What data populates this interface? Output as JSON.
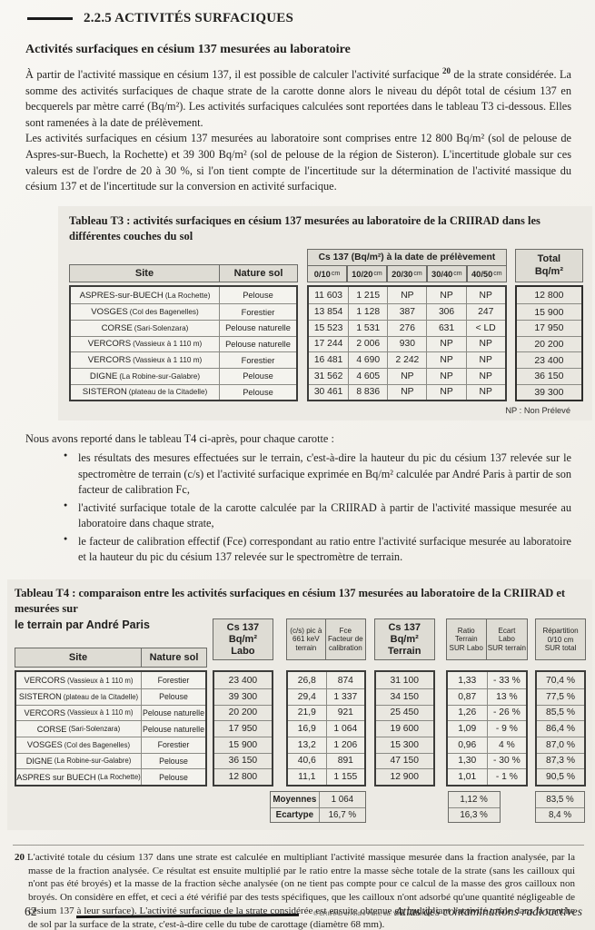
{
  "page": {
    "section_heading": "2.2.5 ACTIVITÉS SURFACIQUES",
    "subtitle": "Activités surfaciques en césium 137 mesurées au laboratoire",
    "para1_before": "À partir de l'activité massique en césium 137, il est possible de calculer l'activité surfacique ",
    "para1_sup": "20",
    "para1_after": " de la strate considérée. La somme des activités surfaciques de chaque strate de la carotte donne alors le niveau du dépôt total de césium 137 en becquerels par mètre carré (Bq/m²). Les activités surfaciques calculées sont reportées dans le tableau T3 ci-dessous. Elles sont ramenées à la date de prélèvement.",
    "para2": "Les activités surfaciques en césium 137 mesurées au laboratoire sont comprises entre 12 800 Bq/m² (sol de pelouse de Aspres-sur-Buech, la Rochette) et 39 300 Bq/m² (sol de pelouse de la région de Sisteron). L'incertitude globale sur ces valeurs est de l'ordre de 20 à 30 %, si l'on tient compte de l'incertitude sur la détermination de l'activité massique du césium 137 et de l'incertitude sur la conversion en activité surfacique.",
    "t4_intro": "Nous avons reporté dans le tableau T4 ci-après, pour chaque carotte :",
    "bullets": [
      "les résultats des mesures effectuées sur le terrain, c'est-à-dire la hauteur du pic du césium 137 relevée sur le spectromètre de terrain (c/s) et l'activité surfacique exprimée en Bq/m² calculée par André Paris à partir de son facteur de calibration Fc,",
      "l'activité surfacique totale de la carotte calculée par la CRIIRAD à partir de l'activité massique mesurée au laboratoire dans chaque strate,",
      "le facteur de calibration effectif (Fce) correspondant au ratio entre l'activité surfacique mesurée au laboratoire et la hauteur du pic du césium 137 relevée sur le spectromètre de terrain."
    ],
    "footnote_marker": "20",
    "footnote_text": "L'activité totale du césium 137 dans une strate est calculée en multipliant l'activité massique mesurée dans la fraction analysée, par la masse de la fraction analysée. Ce résultat est ensuite multiplié par le ratio entre la masse sèche totale de la strate (sans les cailloux qui n'ont pas été broyés) et la masse de la fraction sèche analysée (on ne tient pas compte pour ce calcul de la masse des gros cailloux non broyés. On considère en effet, et ceci a été vérifié par des tests spécifiques, que les cailloux n'ont adsorbé qu'une quantité négligeable de césium 137 à leur surface). L'activité surfacique de la strate considérée est ensuite obtenue en multipliant l'activité totale dans la tranche de sol par la surface de la strate, c'est-à-dire celle du tube de carottage (diamètre 68 mm).",
    "footer": {
      "page_number": "62",
      "credit": "© CRIIRAD et André Paris, éd. Yves Michel",
      "book_title": "Atlas des contaminations radioactives"
    }
  },
  "t3": {
    "title": "Tableau T3 : activités surfaciques en césium 137 mesurées au laboratoire de la CRIIRAD dans les différentes couches du sol",
    "headers": {
      "site": "Site",
      "nature": "Nature sol",
      "group": "Cs 137 (Bq/m²) à la date de prélèvement",
      "depths": [
        {
          "range": "0/10",
          "unit": "cm"
        },
        {
          "range": "10/20",
          "unit": "cm"
        },
        {
          "range": "20/30",
          "unit": "cm"
        },
        {
          "range": "30/40",
          "unit": "cm"
        },
        {
          "range": "40/50",
          "unit": "cm"
        }
      ],
      "total": "Total\nBq/m²"
    },
    "rows": [
      {
        "site": "ASPRES-sur-BUECH",
        "site_detail": "(La Rochette)",
        "nature": "Pelouse",
        "d1": "11 603",
        "d2": "1 215",
        "d3": "NP",
        "d4": "NP",
        "d5": "NP",
        "total": "12 800"
      },
      {
        "site": "VOSGES",
        "site_detail": "(Col des Bagenelles)",
        "nature": "Forestier",
        "d1": "13 854",
        "d2": "1 128",
        "d3": "387",
        "d4": "306",
        "d5": "247",
        "total": "15 900"
      },
      {
        "site": "CORSE",
        "site_detail": "(Sari-Solenzara)",
        "nature": "Pelouse naturelle",
        "d1": "15 523",
        "d2": "1 531",
        "d3": "276",
        "d4": "631",
        "d5": "< LD",
        "total": "17 950"
      },
      {
        "site": "VERCORS",
        "site_detail": "(Vassieux à 1 110 m)",
        "nature": "Pelouse naturelle",
        "d1": "17 244",
        "d2": "2 006",
        "d3": "930",
        "d4": "NP",
        "d5": "NP",
        "total": "20 200"
      },
      {
        "site": "VERCORS",
        "site_detail": "(Vassieux à 1 110 m)",
        "nature": "Forestier",
        "d1": "16 481",
        "d2": "4 690",
        "d3": "2 242",
        "d4": "NP",
        "d5": "NP",
        "total": "23 400"
      },
      {
        "site": "DIGNE",
        "site_detail": "(La Robine-sur-Galabre)",
        "nature": "Pelouse",
        "d1": "31 562",
        "d2": "4 605",
        "d3": "NP",
        "d4": "NP",
        "d5": "NP",
        "total": "36 150"
      },
      {
        "site": "SISTERON",
        "site_detail": "(plateau de la Citadelle)",
        "nature": "Pelouse",
        "d1": "30 461",
        "d2": "8 836",
        "d3": "NP",
        "d4": "NP",
        "d5": "NP",
        "total": "39 300"
      }
    ],
    "note": "NP : Non Prélevé"
  },
  "t4": {
    "title_line12": "Tableau T4 : comparaison entre les activités surfaciques en césium 137 mesurées au laboratoire de la CRIIRAD et mesurées sur",
    "title_line3": "le terrain par André Paris",
    "headers": {
      "site": "Site",
      "nature": "Nature sol",
      "labo": "Cs 137\nBq/m²\nLabo",
      "cs": "(c/s) pic à\n661 keV\nterrain",
      "fce": "Fce\nFacteur de\ncalibration",
      "terrain": "Cs 137\nBq/m²\nTerrain",
      "ratio": "Ratio\nTerrain\nSUR Labo",
      "ecart": "Ecart\nLabo\nSUR terrain",
      "repartition": "Répartition\n0/10 cm\nSUR total"
    },
    "rows": [
      {
        "site": "VERCORS",
        "site_detail": "(Vassieux à 1 110 m)",
        "nature": "Forestier",
        "labo": "23 400",
        "cs": "26,8",
        "fce": "874",
        "terrain": "31 100",
        "ratio": "1,33",
        "ecart": "- 33 %",
        "repartition": "70,4 %"
      },
      {
        "site": "SISTERON",
        "site_detail": "(plateau de la Citadelle)",
        "nature": "Pelouse",
        "labo": "39 300",
        "cs": "29,4",
        "fce": "1 337",
        "terrain": "34 150",
        "ratio": "0,87",
        "ecart": "13 %",
        "repartition": "77,5 %"
      },
      {
        "site": "VERCORS",
        "site_detail": "(Vassieux à 1 110 m)",
        "nature": "Pelouse naturelle",
        "labo": "20 200",
        "cs": "21,9",
        "fce": "921",
        "terrain": "25 450",
        "ratio": "1,26",
        "ecart": "- 26 %",
        "repartition": "85,5 %"
      },
      {
        "site": "CORSE",
        "site_detail": "(Sari-Solenzara)",
        "nature": "Pelouse naturelle",
        "labo": "17 950",
        "cs": "16,9",
        "fce": "1 064",
        "terrain": "19 600",
        "ratio": "1,09",
        "ecart": "- 9 %",
        "repartition": "86,4 %"
      },
      {
        "site": "VOSGES",
        "site_detail": "(Col des Bagenelles)",
        "nature": "Forestier",
        "labo": "15 900",
        "cs": "13,2",
        "fce": "1 206",
        "terrain": "15 300",
        "ratio": "0,96",
        "ecart": "4 %",
        "repartition": "87,0 %"
      },
      {
        "site": "DIGNE",
        "site_detail": "(La Robine-sur-Galabre)",
        "nature": "Pelouse",
        "labo": "36 150",
        "cs": "40,6",
        "fce": "891",
        "terrain": "47 150",
        "ratio": "1,30",
        "ecart": "- 30 %",
        "repartition": "87,3 %"
      },
      {
        "site": "ASPRES sur BUECH",
        "site_detail": "(La Rochette)",
        "nature": "Pelouse",
        "labo": "12 800",
        "cs": "11,1",
        "fce": "1 155",
        "terrain": "12 900",
        "ratio": "1,01",
        "ecart": "- 1 %",
        "repartition": "90,5 %"
      }
    ],
    "summary": {
      "moyennes_label": "Moyennes",
      "moyennes_fce": "1 064",
      "ecartype_label": "Ecartype",
      "ecartype_fce": "16,7 %",
      "moyennes_ratio": "1,12 %",
      "ecartype_ratio": "16,3 %",
      "moyennes_rep": "83,5 %",
      "ecartype_rep": "8,4 %"
    }
  }
}
